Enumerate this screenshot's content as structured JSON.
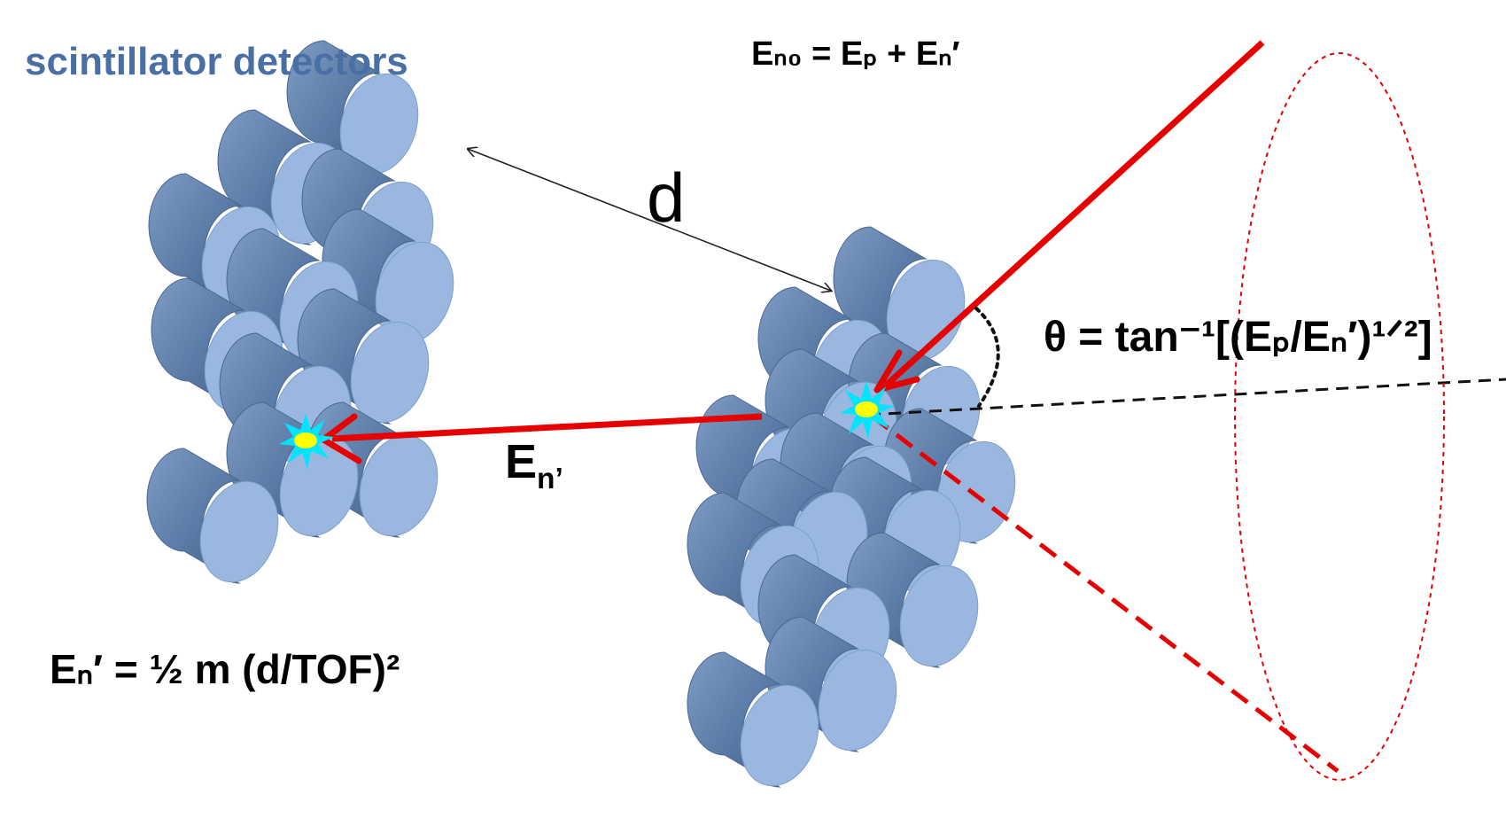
{
  "labels": {
    "detectors": "scintillator detectors",
    "distance": "d",
    "energy_equation_top": "Eₙ₀ = Eₚ + Eₙ′",
    "scattered_neutron": "E",
    "scattered_neutron_sub": "n’",
    "theta_equation": "θ = tan⁻¹[(Eₚ/Eₙ′)¹ᐟ²]",
    "energy_equation": "Eₙ′ = ½ m (d/TOF)²"
  },
  "colors": {
    "detector_face": "#9ab7e0",
    "detector_body": "#5d7ea8",
    "track": "#e60000",
    "flash_outer": "#00e5ff",
    "flash_inner": "#ffff00",
    "label_blue": "#4a6fa5"
  },
  "icons": [
    "scintillator-cylinder",
    "scintillation-flash"
  ]
}
